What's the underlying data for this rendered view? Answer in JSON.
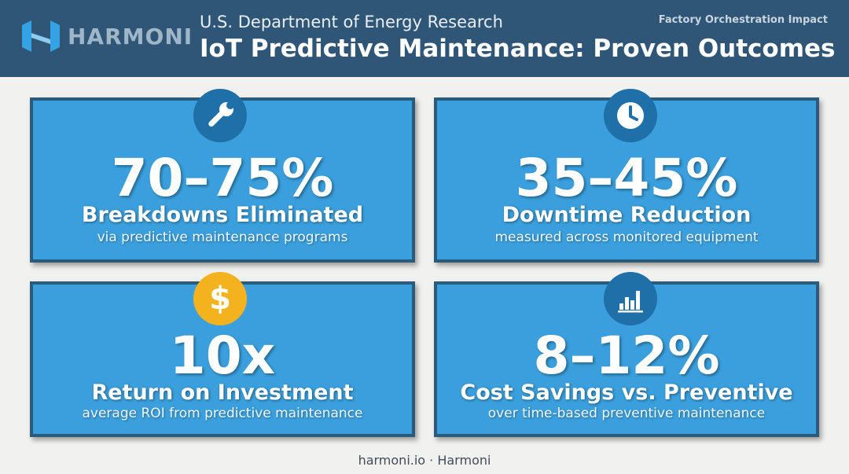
{
  "header": {
    "brand": "HARMONI",
    "supertitle": "U.S. Department of Energy Research",
    "title": "IoT Predictive Maintenance: Proven Outcomes",
    "tagline": "Factory Orchestration Impact"
  },
  "colors": {
    "header_bg": "#2f5677",
    "card_bg": "#3a9fdc",
    "card_border": "#2c5a7a",
    "icon_blue": "#1f6fa8",
    "icon_gold": "#f5b21f",
    "page_bg": "#f1f1f0"
  },
  "cards": [
    {
      "icon": "wrench-icon",
      "stat": "70–75%",
      "label": "Breakdowns Eliminated",
      "sub": "via predictive maintenance programs"
    },
    {
      "icon": "clock-icon",
      "stat": "35–45%",
      "label": "Downtime Reduction",
      "sub": "measured across monitored equipment"
    },
    {
      "icon": "dollar-icon",
      "stat": "10x",
      "label": "Return on Investment",
      "sub": "average ROI from predictive maintenance"
    },
    {
      "icon": "bar-chart-icon",
      "stat": "8–12%",
      "label": "Cost Savings vs. Preventive",
      "sub": "over time-based preventive maintenance"
    }
  ],
  "footer": {
    "text": "harmoni.io · Harmoni"
  }
}
